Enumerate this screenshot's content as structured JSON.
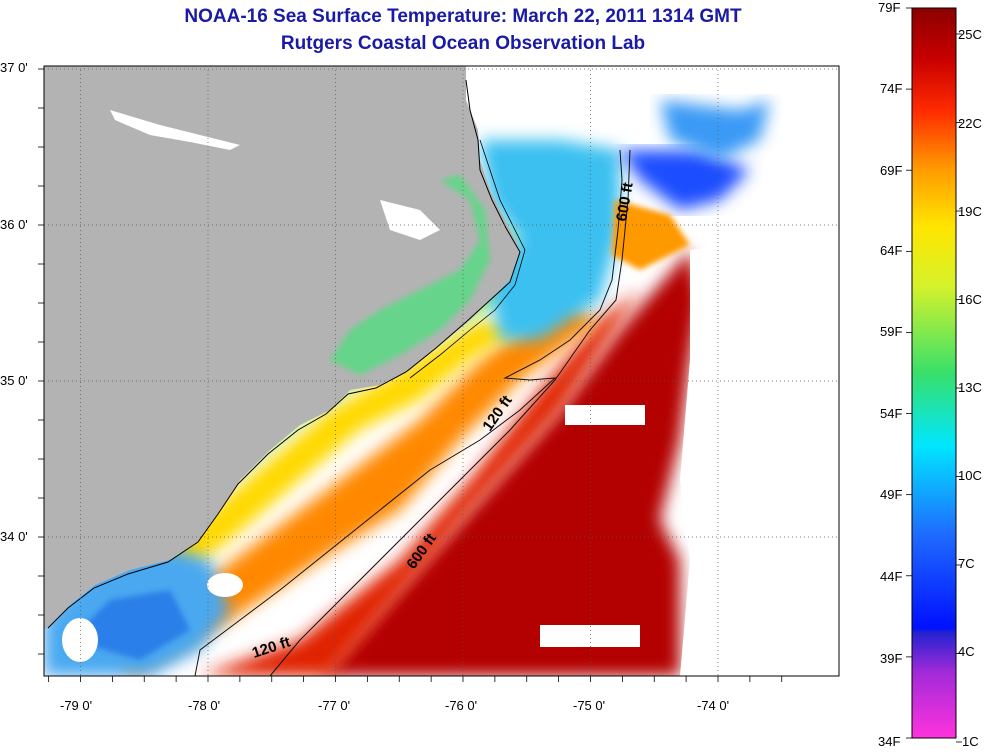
{
  "title": {
    "line1": "NOAA-16 Sea Surface Temperature:  March 22, 2011 1314 GMT",
    "line2": "Rutgers Coastal Ocean Observation Lab"
  },
  "map": {
    "lat_labels": [
      {
        "text": "37 0'",
        "lat": 37.0
      },
      {
        "text": "36 0'",
        "lat": 36.0
      },
      {
        "text": "35 0'",
        "lat": 35.0
      },
      {
        "text": "34 0'",
        "lat": 34.0
      }
    ],
    "lon_labels": [
      {
        "text": "-79 0'",
        "lon": -79
      },
      {
        "text": "-78 0'",
        "lon": -78
      },
      {
        "text": "-77 0'",
        "lon": -77
      },
      {
        "text": "-76 0'",
        "lon": -76
      },
      {
        "text": "-75 0'",
        "lon": -75
      },
      {
        "text": "-74 0'",
        "lon": -74
      }
    ],
    "depth_labels": [
      "600 ft",
      "120 ft",
      "600 ft",
      "120 ft"
    ],
    "colors": {
      "land": "#b3b3b3",
      "no_data": "#ffffff",
      "gridline": "#555555"
    }
  },
  "colorbar": {
    "fahrenheit_labels": [
      "79F",
      "74F",
      "69F",
      "64F",
      "59F",
      "54F",
      "49F",
      "44F",
      "39F",
      "34F"
    ],
    "celsius_labels": [
      "25C",
      "22C",
      "19C",
      "16C",
      "13C",
      "10C",
      "7C",
      "4C",
      "1C"
    ],
    "colors": [
      "#ff33dd",
      "#9a2bd6",
      "#0010ff",
      "#1f6cff",
      "#00e6ff",
      "#38e06a",
      "#d6f22a",
      "#ffe600",
      "#ff9a00",
      "#ff2a00",
      "#c80000",
      "#8c0000"
    ]
  }
}
